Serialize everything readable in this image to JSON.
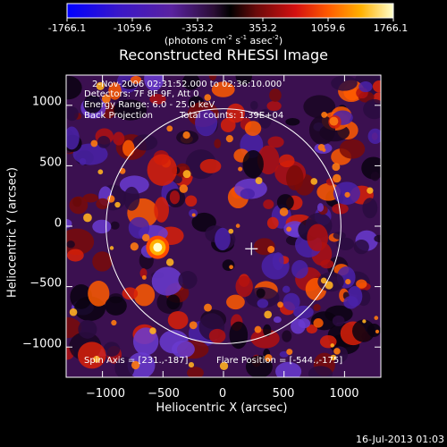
{
  "colorbar": {
    "ticks": [
      "-1766.1",
      "-1059.6",
      "-353.2",
      "353.2",
      "1059.6",
      "1766.1"
    ],
    "tick_values": [
      -1766.1,
      -1059.6,
      -353.2,
      353.2,
      1059.6,
      1766.1
    ],
    "units_pre": "(photons cm",
    "units_exp1": "-2",
    "units_mid": " s",
    "units_exp2": "-1",
    "units_mid2": " asec",
    "units_exp3": "-2",
    "units_post": ")"
  },
  "title": "Reconstructed RHESSI Image",
  "annotations": {
    "time_range": "2-Nov-2006 02:31:52.000 to 02:36:10.000",
    "detectors": "Detectors: 7F 8F 9F, Att 0",
    "energy": "Energy Range: 6.0 - 25.0 keV",
    "method": "Back Projection",
    "counts": "Total counts: 1.39E+04",
    "spin_axis": "Spin Axis = [231.,-187]",
    "flare_position": "Flare Position = [-544.,-175]"
  },
  "footer_timestamp": "16-Jul-2013 01:03",
  "chart_data": {
    "type": "heatmap",
    "title": "Reconstructed RHESSI Image",
    "xlabel": "Heliocentric X (arcsec)",
    "ylabel": "Heliocentric Y (arcsec)",
    "xlim": [
      -1300,
      1300
    ],
    "ylim": [
      -1250,
      1250
    ],
    "x_ticks": [
      -1000,
      -500,
      0,
      500,
      1000
    ],
    "y_ticks": [
      -1000,
      -500,
      0,
      500,
      1000
    ],
    "x_tick_labels": [
      "−1000",
      "−500",
      "0",
      "500",
      "1000"
    ],
    "y_tick_labels": [
      "1000",
      "500",
      "0",
      "−500",
      "−1000"
    ],
    "color_range": [
      -1766.1,
      1766.1
    ],
    "solar_limb_radius_arcsec": 970,
    "spin_axis": [
      231,
      -187
    ],
    "flare_position": [
      -544,
      -175
    ],
    "colors": {
      "background": "#000000",
      "limb": "#ffffff",
      "text": "#ffffff"
    }
  }
}
